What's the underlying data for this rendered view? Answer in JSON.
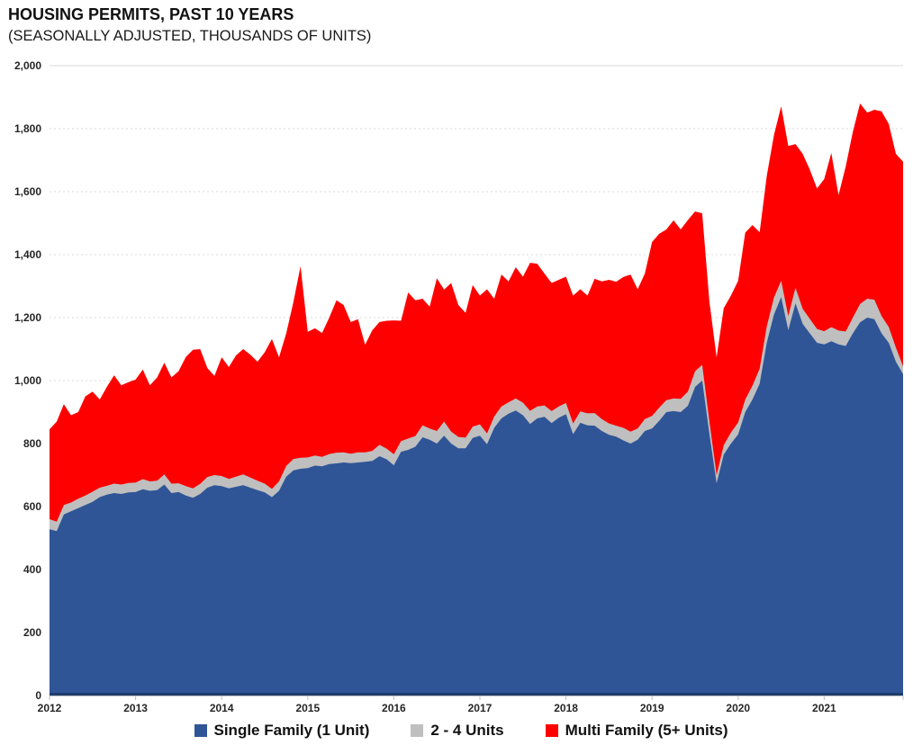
{
  "header": {
    "title": "HOUSING PERMITS, PAST 10 YEARS",
    "subtitle": "(SEASONALLY ADJUSTED, THOUSANDS OF UNITS)"
  },
  "chart_data": {
    "type": "area",
    "stacked": true,
    "granularity": "monthly",
    "x_labels": [
      "2012",
      "2013",
      "2014",
      "2015",
      "2016",
      "2017",
      "2018",
      "2019",
      "2020",
      "2021"
    ],
    "y_tick_labels": [
      "0",
      "200",
      "400",
      "600",
      "800",
      "1,000",
      "1,200",
      "1,400",
      "1,600",
      "1,800",
      "2,000"
    ],
    "ylim": [
      0,
      2000
    ],
    "grid": "horizontal-dashed",
    "legend_position": "bottom",
    "axis_color": "#BFBFBF",
    "grid_color": "#D9D9D9",
    "baseline_color": "#1F3D6D",
    "series": [
      {
        "name": "Single Family (1 Unit)",
        "color": "#2F5597",
        "values": [
          528,
          522,
          575,
          585,
          595,
          605,
          615,
          630,
          638,
          643,
          640,
          645,
          646,
          655,
          650,
          652,
          670,
          643,
          646,
          635,
          628,
          640,
          660,
          668,
          665,
          658,
          663,
          668,
          660,
          652,
          645,
          630,
          650,
          695,
          715,
          720,
          722,
          730,
          728,
          735,
          737,
          740,
          738,
          740,
          742,
          745,
          760,
          750,
          731,
          774,
          780,
          790,
          820,
          812,
          800,
          825,
          800,
          785,
          785,
          818,
          825,
          798,
          850,
          880,
          895,
          905,
          890,
          862,
          880,
          885,
          865,
          882,
          893,
          830,
          866,
          858,
          857,
          840,
          828,
          822,
          810,
          800,
          812,
          840,
          848,
          872,
          900,
          903,
          900,
          920,
          980,
          1000,
          830,
          674,
          765,
          800,
          829,
          900,
          940,
          990,
          1120,
          1210,
          1265,
          1160,
          1245,
          1180,
          1150,
          1120,
          1115,
          1125,
          1115,
          1110,
          1150,
          1185,
          1200,
          1195,
          1150,
          1120,
          1060,
          1020
        ]
      },
      {
        "name": "2 - 4 Units",
        "color": "#BFBFBF",
        "values": [
          32,
          30,
          30,
          28,
          30,
          30,
          32,
          30,
          28,
          30,
          30,
          30,
          30,
          32,
          30,
          30,
          32,
          30,
          28,
          30,
          30,
          32,
          34,
          32,
          32,
          30,
          32,
          34,
          32,
          30,
          28,
          26,
          30,
          34,
          36,
          35,
          34,
          32,
          30,
          32,
          34,
          32,
          30,
          32,
          30,
          32,
          36,
          34,
          35,
          34,
          36,
          34,
          38,
          36,
          40,
          45,
          38,
          36,
          34,
          36,
          36,
          34,
          36,
          38,
          36,
          38,
          40,
          42,
          38,
          36,
          38,
          36,
          36,
          34,
          36,
          38,
          40,
          38,
          36,
          35,
          40,
          38,
          36,
          38,
          40,
          42,
          38,
          40,
          42,
          45,
          50,
          50,
          40,
          26,
          30,
          35,
          38,
          40,
          44,
          48,
          52,
          54,
          52,
          45,
          50,
          48,
          46,
          44,
          42,
          45,
          44,
          46,
          50,
          58,
          60,
          62,
          55,
          50,
          45,
          25
        ]
      },
      {
        "name": "Multi Family (5+ Units)",
        "color": "#FF0000",
        "values": [
          285,
          318,
          320,
          277,
          275,
          315,
          318,
          280,
          314,
          344,
          315,
          320,
          327,
          348,
          305,
          328,
          355,
          337,
          356,
          410,
          440,
          428,
          346,
          315,
          377,
          355,
          385,
          398,
          390,
          378,
          417,
          476,
          394,
          421,
          499,
          608,
          399,
          404,
          393,
          433,
          484,
          468,
          418,
          423,
          342,
          383,
          390,
          406,
          425,
          382,
          464,
          431,
          402,
          387,
          485,
          419,
          472,
          419,
          396,
          449,
          409,
          458,
          374,
          419,
          384,
          417,
          400,
          470,
          453,
          419,
          407,
          402,
          401,
          406,
          388,
          374,
          426,
          437,
          456,
          457,
          479,
          499,
          442,
          462,
          552,
          552,
          542,
          566,
          538,
          545,
          507,
          481,
          380,
          374,
          435,
          435,
          450,
          530,
          510,
          433,
          478,
          516,
          554,
          540,
          456,
          492,
          474,
          446,
          483,
          553,
          430,
          524,
          590,
          637,
          591,
          603,
          650,
          645,
          615,
          650
        ]
      }
    ]
  }
}
